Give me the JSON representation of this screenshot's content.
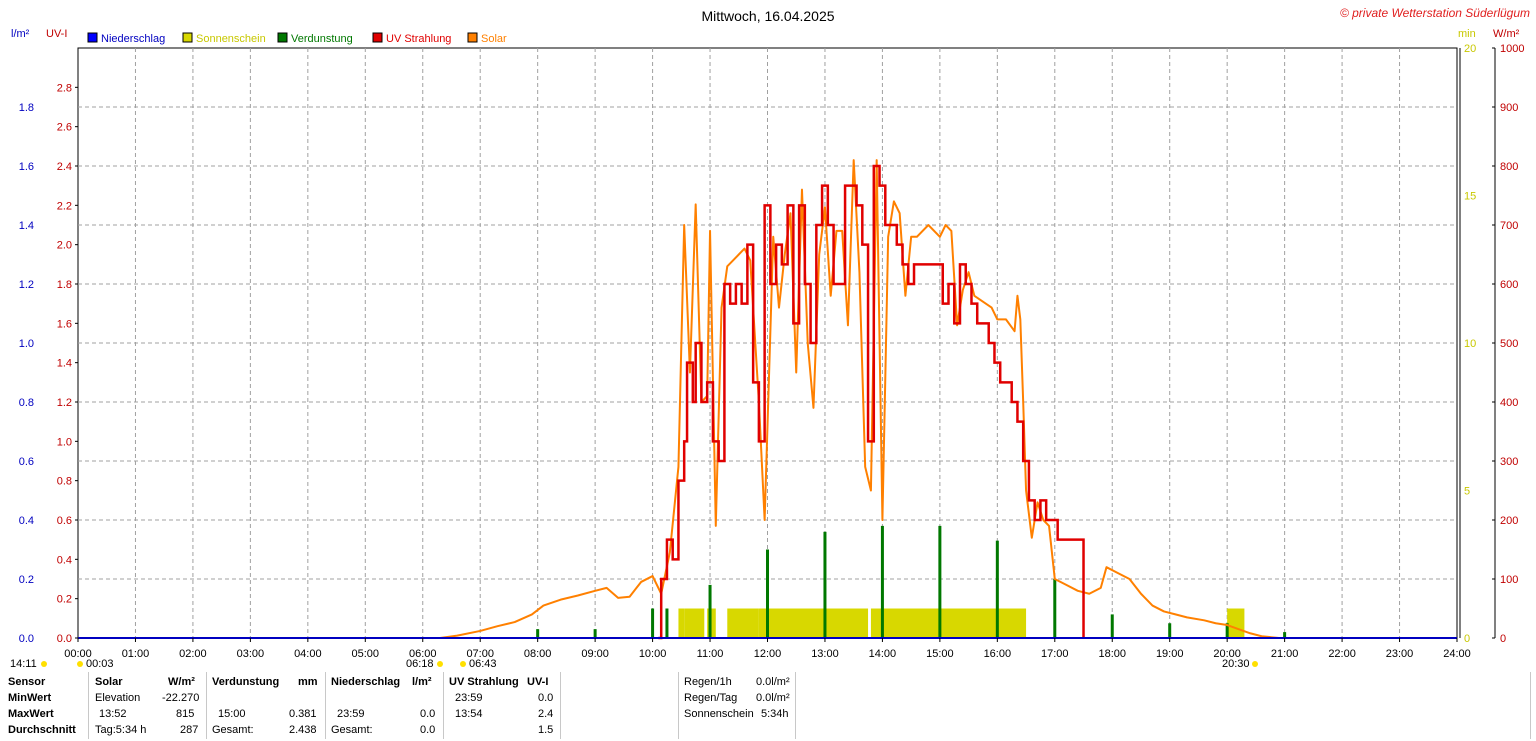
{
  "header": {
    "title": "Mittwoch, 16.04.2025",
    "copyright": "© private Wetterstation Süderlügum",
    "left_units": [
      "l/m²",
      "UV-I"
    ],
    "right_units": [
      "min",
      "W/m²"
    ]
  },
  "legend": [
    {
      "label": "Niederschlag",
      "color": "#0000ff"
    },
    {
      "label": "Sonnenschein",
      "color": "#d8d800"
    },
    {
      "label": "Verdunstung",
      "color": "#007800"
    },
    {
      "label": "UV Strahlung",
      "color": "#e00000"
    },
    {
      "label": "Solar",
      "color": "#ff8000"
    }
  ],
  "colors": {
    "precip_axis": "#0000c0",
    "uv_axis": "#c00000",
    "sun_axis": "#c8c800",
    "solar_axis": "#c00000",
    "grid": "#a0a0a0",
    "sun_bar": "#d8d800",
    "evap": "#007800",
    "uv": "#e00000",
    "solar": "#ff8000"
  },
  "chart_data": {
    "type": "line",
    "x_range_hours": [
      0,
      24
    ],
    "x_ticks": [
      "00:00",
      "01:00",
      "02:00",
      "03:00",
      "04:00",
      "05:00",
      "06:00",
      "07:00",
      "08:00",
      "09:00",
      "10:00",
      "11:00",
      "12:00",
      "13:00",
      "14:00",
      "15:00",
      "16:00",
      "17:00",
      "18:00",
      "19:00",
      "20:00",
      "21:00",
      "22:00",
      "23:00",
      "24:00"
    ],
    "grid": true,
    "legend_position": "top-left",
    "axes": {
      "precipitation": {
        "unit": "l/m²",
        "range": [
          0,
          2.0
        ],
        "ticks": [
          "0.0",
          "0.2",
          "0.4",
          "0.6",
          "0.8",
          "1.0",
          "1.2",
          "1.4",
          "1.6",
          "1.8"
        ]
      },
      "uv_index": {
        "unit": "UV-I",
        "range": [
          0,
          3.0
        ],
        "ticks": [
          "0.0",
          "0.2",
          "0.4",
          "0.6",
          "0.8",
          "1.0",
          "1.2",
          "1.4",
          "1.6",
          "1.8",
          "2.0",
          "2.2",
          "2.4",
          "2.6",
          "2.8"
        ]
      },
      "sunshine": {
        "unit": "min",
        "range": [
          0,
          20
        ],
        "ticks": [
          "0",
          "5",
          "10",
          "15",
          "20"
        ]
      },
      "solar": {
        "unit": "W/m²",
        "range": [
          0,
          1000
        ],
        "ticks": [
          "0",
          "100",
          "200",
          "300",
          "400",
          "500",
          "600",
          "700",
          "800",
          "900",
          "1000"
        ]
      }
    },
    "series": [
      {
        "name": "Solar",
        "axis": "solar",
        "points": [
          [
            6.3,
            0
          ],
          [
            6.6,
            4
          ],
          [
            7.0,
            12
          ],
          [
            7.3,
            20
          ],
          [
            7.6,
            27
          ],
          [
            7.9,
            40
          ],
          [
            8.1,
            55
          ],
          [
            8.4,
            65
          ],
          [
            8.7,
            72
          ],
          [
            9.0,
            80
          ],
          [
            9.2,
            85
          ],
          [
            9.4,
            68
          ],
          [
            9.6,
            70
          ],
          [
            9.8,
            95
          ],
          [
            10.0,
            105
          ],
          [
            10.15,
            75
          ],
          [
            10.3,
            145
          ],
          [
            10.45,
            290
          ],
          [
            10.55,
            700
          ],
          [
            10.65,
            450
          ],
          [
            10.75,
            735
          ],
          [
            10.85,
            400
          ],
          [
            10.95,
            410
          ],
          [
            11.0,
            690
          ],
          [
            11.1,
            190
          ],
          [
            11.2,
            560
          ],
          [
            11.3,
            630
          ],
          [
            11.4,
            640
          ],
          [
            11.5,
            650
          ],
          [
            11.6,
            660
          ],
          [
            11.7,
            640
          ],
          [
            11.85,
            400
          ],
          [
            11.95,
            200
          ],
          [
            12.1,
            680
          ],
          [
            12.2,
            560
          ],
          [
            12.3,
            650
          ],
          [
            12.4,
            720
          ],
          [
            12.5,
            450
          ],
          [
            12.6,
            760
          ],
          [
            12.7,
            500
          ],
          [
            12.8,
            390
          ],
          [
            12.9,
            650
          ],
          [
            13.0,
            730
          ],
          [
            13.1,
            580
          ],
          [
            13.2,
            690
          ],
          [
            13.3,
            690
          ],
          [
            13.4,
            530
          ],
          [
            13.5,
            810
          ],
          [
            13.6,
            620
          ],
          [
            13.7,
            290
          ],
          [
            13.8,
            250
          ],
          [
            13.9,
            810
          ],
          [
            14.0,
            200
          ],
          [
            14.1,
            680
          ],
          [
            14.2,
            740
          ],
          [
            14.3,
            720
          ],
          [
            14.4,
            580
          ],
          [
            14.5,
            680
          ],
          [
            14.6,
            680
          ],
          [
            14.8,
            700
          ],
          [
            15.0,
            680
          ],
          [
            15.1,
            700
          ],
          [
            15.2,
            690
          ],
          [
            15.3,
            530
          ],
          [
            15.4,
            590
          ],
          [
            15.5,
            620
          ],
          [
            15.6,
            580
          ],
          [
            15.75,
            570
          ],
          [
            15.9,
            560
          ],
          [
            16.0,
            540
          ],
          [
            16.15,
            540
          ],
          [
            16.3,
            520
          ],
          [
            16.35,
            580
          ],
          [
            16.4,
            540
          ],
          [
            16.45,
            400
          ],
          [
            16.5,
            250
          ],
          [
            16.6,
            170
          ],
          [
            16.7,
            230
          ],
          [
            16.8,
            200
          ],
          [
            16.9,
            190
          ],
          [
            17.0,
            100
          ],
          [
            17.2,
            90
          ],
          [
            17.4,
            80
          ],
          [
            17.6,
            75
          ],
          [
            17.8,
            85
          ],
          [
            17.9,
            120
          ],
          [
            18.1,
            110
          ],
          [
            18.3,
            100
          ],
          [
            18.5,
            75
          ],
          [
            18.7,
            55
          ],
          [
            18.9,
            45
          ],
          [
            19.1,
            40
          ],
          [
            19.3,
            35
          ],
          [
            19.6,
            30
          ],
          [
            19.8,
            25
          ],
          [
            20.0,
            22
          ],
          [
            20.2,
            15
          ],
          [
            20.4,
            8
          ],
          [
            20.6,
            3
          ],
          [
            20.9,
            0
          ]
        ]
      },
      {
        "name": "UV Strahlung",
        "axis": "uv_index",
        "points": [
          [
            10.1,
            0.0
          ],
          [
            10.15,
            0.3
          ],
          [
            10.25,
            0.5
          ],
          [
            10.35,
            0.4
          ],
          [
            10.45,
            0.8
          ],
          [
            10.55,
            1.0
          ],
          [
            10.6,
            1.4
          ],
          [
            10.7,
            1.2
          ],
          [
            10.75,
            1.5
          ],
          [
            10.85,
            1.2
          ],
          [
            10.95,
            1.3
          ],
          [
            11.05,
            1.0
          ],
          [
            11.15,
            0.9
          ],
          [
            11.25,
            1.8
          ],
          [
            11.35,
            1.7
          ],
          [
            11.45,
            1.8
          ],
          [
            11.55,
            1.7
          ],
          [
            11.65,
            2.0
          ],
          [
            11.75,
            1.3
          ],
          [
            11.85,
            1.0
          ],
          [
            11.95,
            2.2
          ],
          [
            12.05,
            1.8
          ],
          [
            12.15,
            2.0
          ],
          [
            12.25,
            1.9
          ],
          [
            12.35,
            2.2
          ],
          [
            12.45,
            1.6
          ],
          [
            12.55,
            2.2
          ],
          [
            12.65,
            1.8
          ],
          [
            12.75,
            1.5
          ],
          [
            12.85,
            2.1
          ],
          [
            12.95,
            2.3
          ],
          [
            13.05,
            2.1
          ],
          [
            13.15,
            1.8
          ],
          [
            13.25,
            1.8
          ],
          [
            13.35,
            2.3
          ],
          [
            13.45,
            2.3
          ],
          [
            13.55,
            2.2
          ],
          [
            13.65,
            2.0
          ],
          [
            13.75,
            1.0
          ],
          [
            13.85,
            2.4
          ],
          [
            13.95,
            2.3
          ],
          [
            14.05,
            2.1
          ],
          [
            14.15,
            2.1
          ],
          [
            14.25,
            2.0
          ],
          [
            14.35,
            1.9
          ],
          [
            14.45,
            1.8
          ],
          [
            14.55,
            1.9
          ],
          [
            14.65,
            1.9
          ],
          [
            14.75,
            1.9
          ],
          [
            14.85,
            1.9
          ],
          [
            14.95,
            1.9
          ],
          [
            15.05,
            1.7
          ],
          [
            15.15,
            1.8
          ],
          [
            15.25,
            1.6
          ],
          [
            15.35,
            1.9
          ],
          [
            15.45,
            1.8
          ],
          [
            15.55,
            1.7
          ],
          [
            15.65,
            1.6
          ],
          [
            15.75,
            1.6
          ],
          [
            15.85,
            1.5
          ],
          [
            15.95,
            1.4
          ],
          [
            16.05,
            1.3
          ],
          [
            16.15,
            1.3
          ],
          [
            16.25,
            1.2
          ],
          [
            16.35,
            1.1
          ],
          [
            16.45,
            0.9
          ],
          [
            16.55,
            0.7
          ],
          [
            16.65,
            0.6
          ],
          [
            16.75,
            0.7
          ],
          [
            16.85,
            0.6
          ],
          [
            16.95,
            0.6
          ],
          [
            17.05,
            0.5
          ],
          [
            17.25,
            0.5
          ],
          [
            17.45,
            0.5
          ],
          [
            17.5,
            0.0
          ]
        ]
      },
      {
        "name": "Sonnenschein",
        "axis": "sunshine",
        "bars": [
          [
            10.45,
            10.55,
            1
          ],
          [
            10.55,
            10.9,
            1
          ],
          [
            10.95,
            11.1,
            1
          ],
          [
            11.3,
            11.85,
            1
          ],
          [
            11.85,
            13.75,
            1
          ],
          [
            13.8,
            16.5,
            1
          ],
          [
            20.0,
            20.3,
            1
          ]
        ]
      },
      {
        "name": "Verdunstung",
        "axis": "precipitation",
        "spikes": [
          [
            8.0,
            0.03
          ],
          [
            9.0,
            0.03
          ],
          [
            10.0,
            0.1
          ],
          [
            10.25,
            0.1
          ],
          [
            11.0,
            0.18
          ],
          [
            12.0,
            0.3
          ],
          [
            13.0,
            0.36
          ],
          [
            14.0,
            0.38
          ],
          [
            15.0,
            0.38
          ],
          [
            16.0,
            0.33
          ],
          [
            17.0,
            0.2
          ],
          [
            18.0,
            0.08
          ],
          [
            19.0,
            0.05
          ],
          [
            20.0,
            0.05
          ],
          [
            21.0,
            0.02
          ]
        ]
      },
      {
        "name": "Niederschlag",
        "axis": "precipitation",
        "points": [
          [
            0,
            0
          ],
          [
            24,
            0
          ]
        ]
      }
    ]
  },
  "markers": {
    "left_time": "14:11",
    "t1": "00:03",
    "sunrise": "06:18",
    "t2": "06:43",
    "sunset": "20:30"
  },
  "stats": {
    "headers": {
      "sensor": "Sensor",
      "solar": "Solar",
      "solar_unit": "W/m²",
      "evap": "Verdunstung",
      "evap_unit": "mm",
      "precip": "Niederschlag",
      "precip_unit": "l/m²",
      "uv": "UV Strahlung",
      "uv_unit": "UV-I"
    },
    "rows": [
      {
        "label": "MinWert",
        "solar_time": "Elevation",
        "solar_val": "-22.270",
        "evap_time": "",
        "evap_val": "",
        "precip_time": "",
        "precip_val": "",
        "uv_time": "23:59",
        "uv_val": "0.0"
      },
      {
        "label": "MaxWert",
        "solar_time": "13:52",
        "solar_val": "815",
        "evap_time": "15:00",
        "evap_val": "0.381",
        "precip_time": "23:59",
        "precip_val": "0.0",
        "uv_time": "13:54",
        "uv_val": "2.4"
      },
      {
        "label": "Durchschnitt",
        "solar_time": "Tag:5:34 h",
        "solar_val": "287",
        "evap_time": "Gesamt:",
        "evap_val": "2.438",
        "precip_time": "Gesamt:",
        "precip_val": "0.0",
        "uv_time": "",
        "uv_val": "1.5"
      }
    ],
    "summary": [
      {
        "label": "Regen/1h",
        "value": "0.0l/m²"
      },
      {
        "label": "Regen/Tag",
        "value": "0.0l/m²"
      },
      {
        "label": "Sonnenschein",
        "value": "5:34h"
      }
    ]
  }
}
